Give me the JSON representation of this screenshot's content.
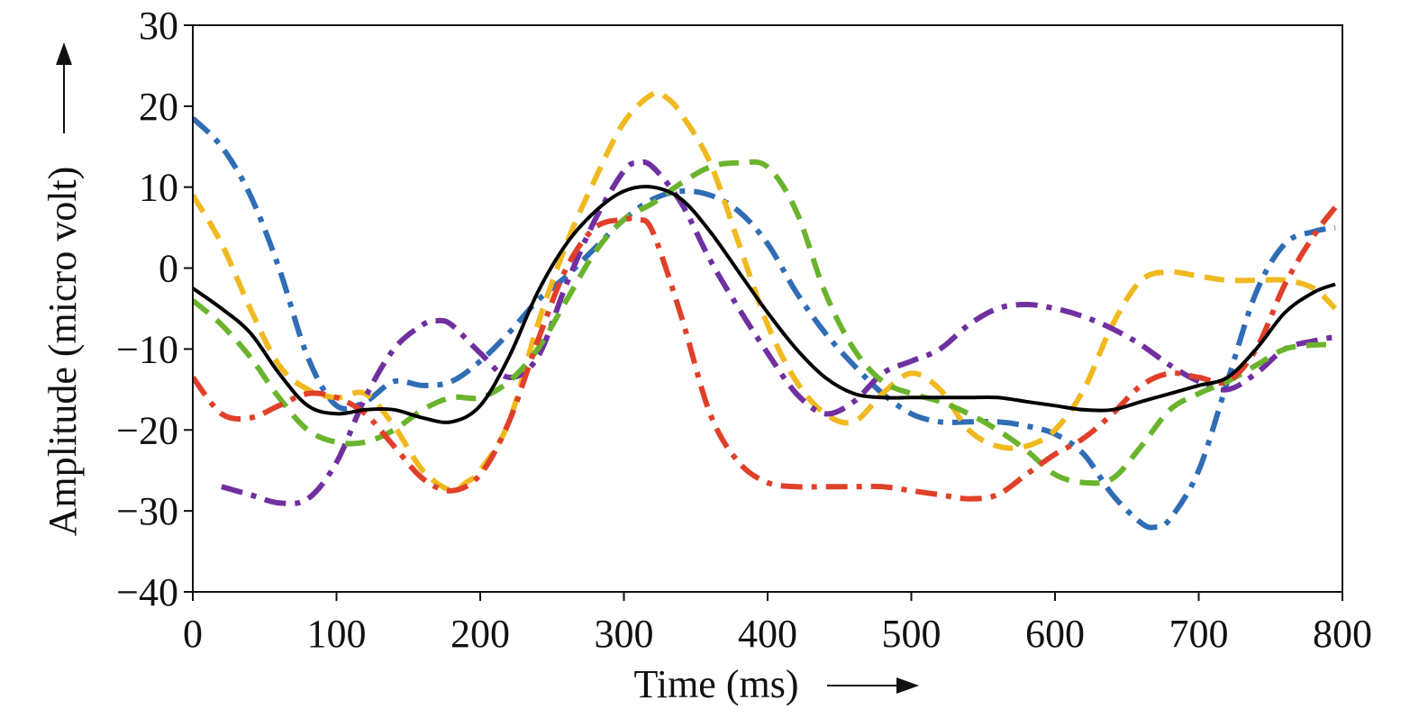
{
  "chart_data": {
    "type": "line",
    "xlabel": "Time (ms)",
    "ylabel": "Amplitude (micro volt)",
    "xlim": [
      0,
      800
    ],
    "ylim": [
      -40,
      30
    ],
    "xticks": [
      0,
      100,
      200,
      300,
      400,
      500,
      600,
      700,
      800
    ],
    "yticks": [
      30,
      20,
      10,
      0,
      -10,
      -20,
      -30,
      -40
    ],
    "ytick_labels": [
      "30",
      "20",
      "10",
      "0",
      "−10",
      "−20",
      "−30",
      "−40"
    ],
    "grid": false,
    "legend": "none",
    "series": [
      {
        "color": "#2f6db5",
        "style": "dash-dot",
        "x": [
          0,
          20,
          40,
          60,
          80,
          100,
          120,
          140,
          160,
          180,
          200,
          220,
          240,
          260,
          280,
          300,
          320,
          340,
          360,
          380,
          400,
          420,
          440,
          460,
          480,
          500,
          520,
          540,
          560,
          580,
          600,
          620,
          640,
          660,
          670,
          680,
          700,
          720,
          740,
          760,
          780,
          795
        ],
        "y": [
          18.5,
          15,
          9,
          0,
          -11,
          -17,
          -16.5,
          -14,
          -14.5,
          -14,
          -11.5,
          -8,
          -4,
          -1,
          2.5,
          6,
          8.5,
          9.5,
          9,
          7,
          3,
          -3,
          -8,
          -12,
          -15.5,
          -18,
          -19,
          -19,
          -19,
          -19.5,
          -20.5,
          -23,
          -28,
          -31.5,
          -32,
          -31,
          -25,
          -14,
          -3,
          3,
          4.5,
          5
        ]
      },
      {
        "color": "#f0b91f",
        "style": "dashed",
        "x": [
          0,
          20,
          40,
          60,
          80,
          100,
          120,
          140,
          160,
          180,
          190,
          200,
          220,
          240,
          260,
          280,
          300,
          320,
          330,
          340,
          360,
          380,
          400,
          420,
          440,
          460,
          480,
          500,
          520,
          540,
          560,
          580,
          600,
          620,
          640,
          660,
          680,
          700,
          720,
          740,
          760,
          780,
          795
        ],
        "y": [
          9,
          3,
          -5,
          -12,
          -15,
          -16,
          -15.5,
          -19.5,
          -25,
          -27.5,
          -26.5,
          -25,
          -19,
          -7,
          3,
          11,
          18,
          21.5,
          21,
          19,
          13,
          3,
          -7,
          -14,
          -18,
          -19,
          -15.5,
          -13,
          -15,
          -20,
          -22,
          -22,
          -20,
          -15,
          -7,
          -1.5,
          -0.5,
          -1,
          -1.5,
          -1.5,
          -1.5,
          -2.5,
          -5
        ]
      },
      {
        "color": "#7030a0",
        "style": "dash-dot",
        "x": [
          20,
          40,
          60,
          80,
          100,
          120,
          140,
          160,
          170,
          180,
          200,
          220,
          240,
          260,
          280,
          300,
          310,
          320,
          340,
          360,
          380,
          400,
          420,
          440,
          460,
          480,
          500,
          520,
          540,
          560,
          580,
          600,
          620,
          640,
          660,
          680,
          700,
          720,
          740,
          760,
          780,
          795
        ],
        "y": [
          -27,
          -28,
          -29,
          -28.5,
          -24,
          -16,
          -10,
          -7,
          -6.5,
          -7,
          -10.5,
          -13.5,
          -11,
          -2,
          6,
          12,
          13,
          12.5,
          8,
          1,
          -5,
          -10.5,
          -15.5,
          -18,
          -16.5,
          -13,
          -11.5,
          -10,
          -7,
          -5,
          -4.5,
          -5,
          -6,
          -7.5,
          -9.5,
          -12,
          -14,
          -15,
          -13,
          -10,
          -9,
          -8.5
        ]
      },
      {
        "color": "#6ab42d",
        "style": "dashed",
        "x": [
          0,
          20,
          40,
          60,
          80,
          100,
          120,
          140,
          160,
          180,
          200,
          220,
          240,
          260,
          280,
          300,
          320,
          340,
          360,
          380,
          400,
          420,
          440,
          460,
          480,
          500,
          520,
          540,
          560,
          580,
          600,
          620,
          640,
          660,
          680,
          700,
          720,
          740,
          760,
          780,
          795
        ],
        "y": [
          -4,
          -7,
          -11,
          -16,
          -20,
          -21.5,
          -21.5,
          -20,
          -17.5,
          -16,
          -16,
          -14,
          -10,
          -4,
          2,
          6,
          8,
          10.5,
          12.5,
          13,
          12.5,
          7,
          -3,
          -10,
          -14,
          -15.5,
          -16.5,
          -18,
          -20,
          -22.5,
          -25.5,
          -26.5,
          -26,
          -22,
          -17.5,
          -15.5,
          -14,
          -12,
          -10,
          -9.5,
          -9.5
        ]
      },
      {
        "color": "#e0402a",
        "style": "dash-dot",
        "x": [
          0,
          20,
          40,
          60,
          80,
          100,
          120,
          140,
          160,
          180,
          200,
          220,
          240,
          260,
          280,
          300,
          310,
          320,
          340,
          360,
          380,
          400,
          420,
          440,
          460,
          480,
          500,
          520,
          540,
          560,
          580,
          600,
          620,
          640,
          660,
          680,
          700,
          720,
          740,
          760,
          780,
          795
        ],
        "y": [
          -13.5,
          -18,
          -18.5,
          -17,
          -15.5,
          -16,
          -18,
          -22,
          -26,
          -27.5,
          -25.5,
          -19,
          -9,
          0,
          5,
          6,
          6,
          4.5,
          -6,
          -18,
          -24,
          -26.5,
          -27,
          -27,
          -27,
          -27,
          -27.5,
          -28,
          -28.5,
          -28,
          -25.5,
          -23,
          -21,
          -18,
          -14.5,
          -13,
          -13.5,
          -14,
          -10,
          -2,
          4,
          7.5
        ]
      },
      {
        "color": "#000000",
        "style": "solid",
        "x": [
          0,
          20,
          40,
          60,
          80,
          100,
          120,
          140,
          160,
          180,
          200,
          220,
          240,
          260,
          280,
          300,
          320,
          340,
          360,
          380,
          400,
          420,
          440,
          460,
          480,
          500,
          520,
          540,
          560,
          580,
          600,
          620,
          640,
          660,
          680,
          700,
          720,
          740,
          760,
          780,
          795
        ],
        "y": [
          -2.5,
          -5,
          -8,
          -13,
          -17,
          -18,
          -17.5,
          -17.5,
          -18.5,
          -19,
          -17,
          -11,
          -3,
          3,
          7,
          9.5,
          10,
          8.5,
          4.5,
          -0.5,
          -5.5,
          -10,
          -13.5,
          -15.5,
          -16,
          -16,
          -16,
          -16,
          -16,
          -16.5,
          -17,
          -17.5,
          -17.5,
          -16.5,
          -15.5,
          -14.5,
          -13.5,
          -10,
          -5.5,
          -3,
          -2
        ]
      }
    ]
  }
}
